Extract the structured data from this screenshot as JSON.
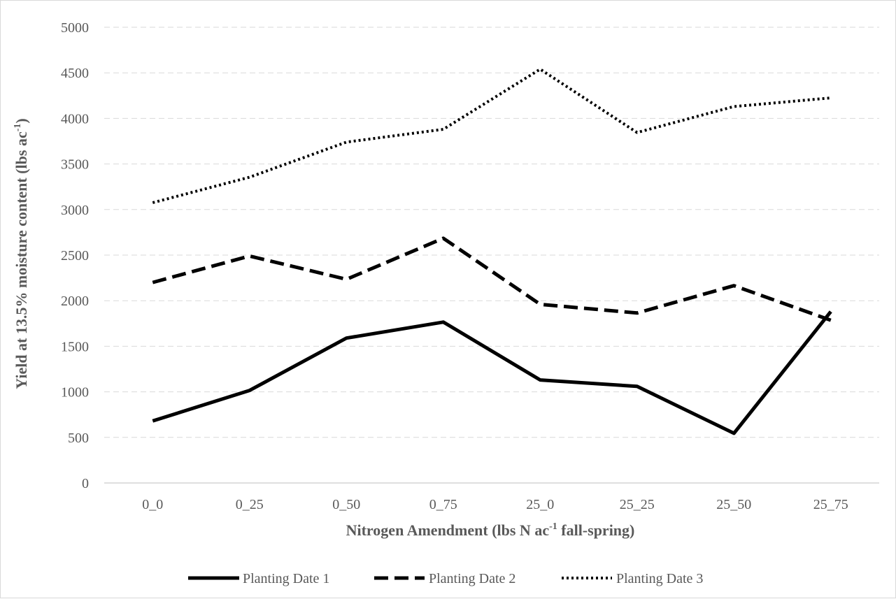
{
  "chart_data": {
    "type": "line",
    "categories": [
      "0_0",
      "0_25",
      "0_50",
      "0_75",
      "25_0",
      "25_25",
      "25_50",
      "25_75"
    ],
    "series": [
      {
        "name": "Planting Date 1",
        "values": [
          680,
          1015,
          1590,
          1765,
          1130,
          1060,
          545,
          1880
        ],
        "color": "#000000",
        "dash": "solid"
      },
      {
        "name": "Planting Date 2",
        "values": [
          2200,
          2490,
          2235,
          2685,
          1960,
          1865,
          2165,
          1785
        ],
        "color": "#000000",
        "dash": "dashed"
      },
      {
        "name": "Planting Date 3",
        "values": [
          3075,
          3355,
          3740,
          3880,
          4540,
          3845,
          4130,
          4225
        ],
        "color": "#000000",
        "dash": "dotted"
      }
    ],
    "title": "",
    "xlabel_main": "Nitrogen Amendment (lbs N ac",
    "xlabel_sup": "-1",
    "xlabel_tail": " fall-spring)",
    "ylabel_main": "Yield at 13.5% moisture content (lbs ac",
    "ylabel_sup": "-1",
    "ylabel_tail": ")",
    "ylim": [
      0,
      5000
    ],
    "yticks": [
      0,
      500,
      1000,
      1500,
      2000,
      2500,
      3000,
      3500,
      4000,
      4500,
      5000
    ],
    "grid": true,
    "grid_style": "dashed",
    "legend_position": "bottom"
  }
}
